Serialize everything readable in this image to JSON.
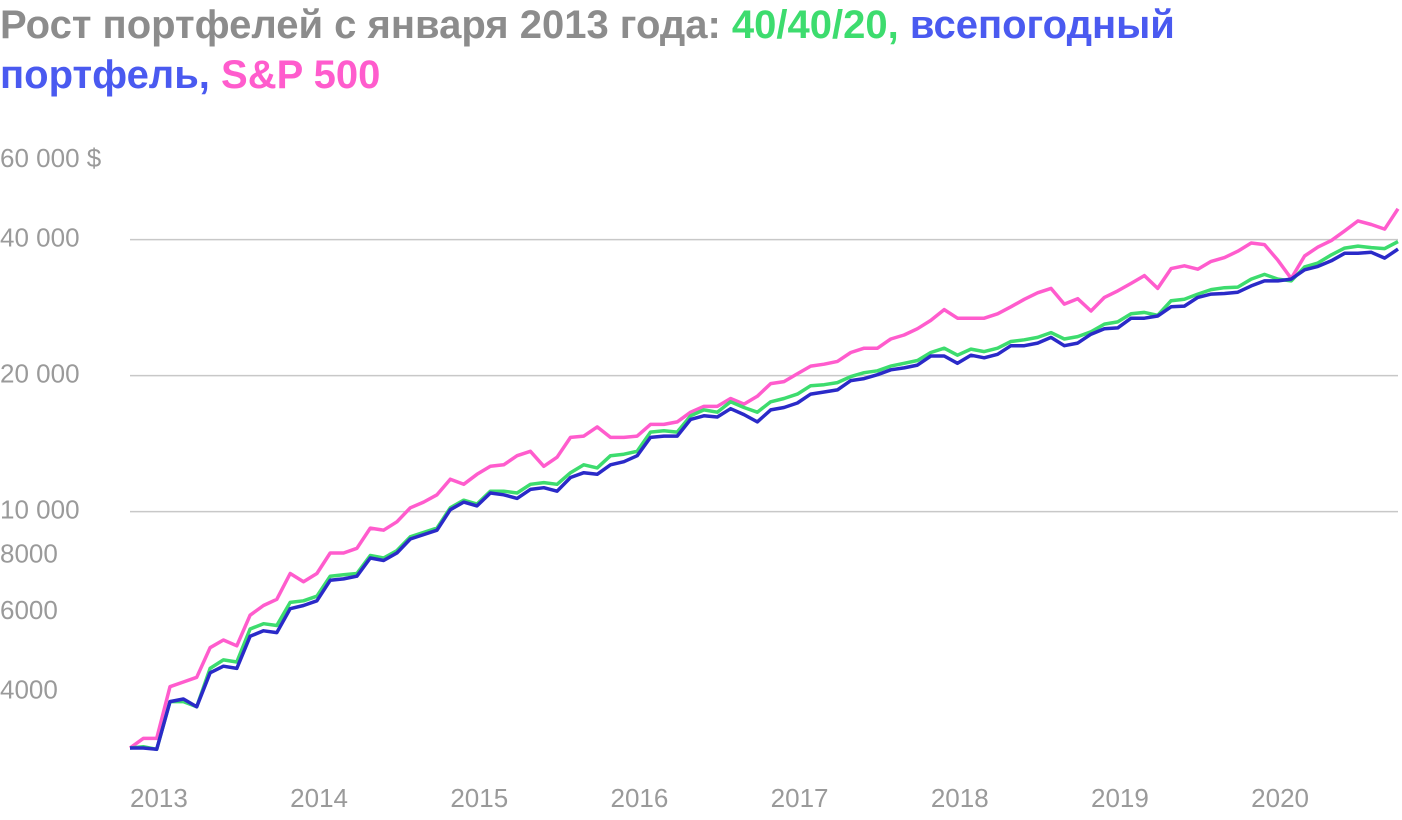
{
  "chart_data": {
    "type": "line",
    "title_lines": [
      [
        {
          "text": "Рост портфелей с января 2013 года: ",
          "color": "#8c8c8c"
        },
        {
          "text": "40/40/20,",
          "color": "#3ddc6e"
        },
        {
          "text": " всепогодный",
          "color": "#4a5af0"
        }
      ],
      [
        {
          "text": "портфель,",
          "color": "#4a5af0"
        },
        {
          "text": " S&P 500",
          "color": "#ff5ccd"
        }
      ]
    ],
    "categories": [
      "2013",
      null,
      null,
      null,
      null,
      null,
      null,
      null,
      null,
      null,
      null,
      null,
      "2014",
      null,
      null,
      null,
      null,
      null,
      null,
      null,
      null,
      null,
      null,
      null,
      "2015",
      null,
      null,
      null,
      null,
      null,
      null,
      null,
      null,
      null,
      null,
      null,
      "2016",
      null,
      null,
      null,
      null,
      null,
      null,
      null,
      null,
      null,
      null,
      null,
      "2017",
      null,
      null,
      null,
      null,
      null,
      null,
      null,
      null,
      null,
      null,
      null,
      "2018",
      null,
      null,
      null,
      null,
      null,
      null,
      null,
      null,
      null,
      null,
      null,
      "2019",
      null,
      null,
      null,
      null,
      null,
      null,
      null,
      null,
      null,
      null,
      null,
      "2020",
      null,
      null,
      null,
      null,
      null,
      null,
      null,
      null,
      null,
      null,
      null
    ],
    "log_scale": true,
    "ylim": [
      3000,
      60000
    ],
    "yticks": [
      {
        "value": 60000,
        "label": "60 000 $",
        "grid": false
      },
      {
        "value": 40000,
        "label": "40 000",
        "grid": true
      },
      {
        "value": 20000,
        "label": "20 000",
        "grid": true
      },
      {
        "value": 10000,
        "label": "10 000",
        "grid": true
      },
      8000,
      6000,
      4000
    ],
    "series": [
      {
        "color": "#ff5ccd",
        "values": [
          3000,
          3150,
          3150,
          4100,
          4200,
          4300,
          5000,
          5200,
          5050,
          5900,
          6200,
          6400,
          7300,
          7000,
          7300,
          8100,
          8100,
          8300,
          9200,
          9100,
          9500,
          10200,
          10500,
          10900,
          11800,
          11500,
          12100,
          12600,
          12700,
          13300,
          13600,
          12600,
          13200,
          14600,
          14700,
          15400,
          14600,
          14600,
          14700,
          15600,
          15600,
          15800,
          16600,
          17100,
          17100,
          17800,
          17300,
          18000,
          19200,
          19400,
          20200,
          21000,
          21200,
          21500,
          22500,
          23000,
          23000,
          24100,
          24600,
          25400,
          26500,
          28000,
          26800,
          26800,
          26800,
          27400,
          28400,
          29500,
          30500,
          31200,
          28800,
          29600,
          27800,
          29800,
          30800,
          32000,
          33300,
          31200,
          34500,
          35000,
          34400,
          35800,
          36500,
          37700,
          39300,
          39000,
          36000,
          32800,
          36800,
          38500,
          39800,
          41800,
          44000,
          43200,
          42200,
          46800
        ]
      },
      {
        "color": "#3ddc6e",
        "values": [
          3000,
          3020,
          2980,
          3800,
          3800,
          3700,
          4500,
          4700,
          4650,
          5500,
          5650,
          5600,
          6300,
          6350,
          6500,
          7200,
          7250,
          7300,
          8000,
          7900,
          8200,
          8800,
          9000,
          9200,
          10200,
          10600,
          10400,
          11100,
          11100,
          11000,
          11500,
          11600,
          11500,
          12200,
          12700,
          12500,
          13300,
          13400,
          13600,
          15000,
          15100,
          15000,
          16300,
          16800,
          16600,
          17500,
          17000,
          16600,
          17500,
          17800,
          18200,
          19000,
          19100,
          19300,
          19900,
          20300,
          20500,
          21000,
          21300,
          21600,
          22500,
          23000,
          22200,
          22900,
          22600,
          23000,
          23800,
          24000,
          24300,
          24900,
          24100,
          24400,
          25000,
          26000,
          26300,
          27400,
          27600,
          27200,
          29300,
          29500,
          30300,
          31000,
          31300,
          31400,
          32700,
          33500,
          32700,
          32400,
          34800,
          35500,
          37000,
          38300,
          38700,
          38400,
          38200,
          39600
        ]
      },
      {
        "color": "#2a2ac8",
        "values": [
          3000,
          3000,
          2980,
          3800,
          3850,
          3700,
          4400,
          4550,
          4500,
          5300,
          5450,
          5400,
          6100,
          6200,
          6350,
          7050,
          7100,
          7200,
          7900,
          7800,
          8100,
          8700,
          8900,
          9100,
          10100,
          10500,
          10300,
          11000,
          10900,
          10700,
          11200,
          11300,
          11100,
          11900,
          12200,
          12100,
          12700,
          12900,
          13300,
          14600,
          14700,
          14700,
          16000,
          16300,
          16200,
          16900,
          16400,
          15800,
          16800,
          17000,
          17400,
          18200,
          18400,
          18600,
          19500,
          19700,
          20100,
          20600,
          20800,
          21100,
          22100,
          22100,
          21300,
          22200,
          21900,
          22300,
          23300,
          23300,
          23600,
          24300,
          23300,
          23600,
          24700,
          25400,
          25500,
          26800,
          26800,
          27100,
          28400,
          28500,
          29800,
          30300,
          30400,
          30600,
          31600,
          32400,
          32400,
          32700,
          34300,
          34900,
          35900,
          37300,
          37300,
          37500,
          36400,
          38100
        ]
      }
    ]
  }
}
